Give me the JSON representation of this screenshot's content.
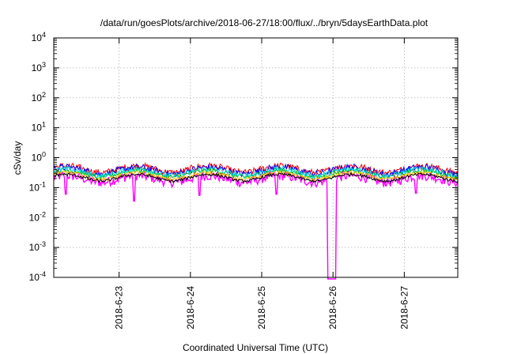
{
  "chart_data": {
    "type": "line",
    "title": "/data/run/goesPlots/archive/2018-06-27/18:00/flux/../bryn/5daysEarthData.plot",
    "xlabel": "Coordinated Universal Time (UTC)",
    "ylabel": "cSv/day",
    "yscale": "log",
    "ylim": [
      0.0001,
      10000
    ],
    "y_ticks": [
      {
        "value": 0.0001,
        "base": "10",
        "exp": "-4"
      },
      {
        "value": 0.001,
        "base": "10",
        "exp": "-3"
      },
      {
        "value": 0.01,
        "base": "10",
        "exp": "-2"
      },
      {
        "value": 0.1,
        "base": "10",
        "exp": "-1"
      },
      {
        "value": 1,
        "base": "10",
        "exp": "0"
      },
      {
        "value": 10,
        "base": "10",
        "exp": "1"
      },
      {
        "value": 100,
        "base": "10",
        "exp": "2"
      },
      {
        "value": 1000,
        "base": "10",
        "exp": "3"
      },
      {
        "value": 10000,
        "base": "10",
        "exp": "4"
      }
    ],
    "xlim": [
      "2018-06-22T02:00",
      "2018-06-27T18:00"
    ],
    "x_ticks": [
      {
        "value": "2018-06-23",
        "label": "2018-6-23"
      },
      {
        "value": "2018-06-24",
        "label": "2018-6-24"
      },
      {
        "value": "2018-06-25",
        "label": "2018-6-25"
      },
      {
        "value": "2018-06-26",
        "label": "2018-6-26"
      },
      {
        "value": "2018-06-27",
        "label": "2018-6-27"
      }
    ],
    "grid": true,
    "series": [
      {
        "color": "#ff00ff",
        "level": 0.2,
        "spread": 1.45,
        "dropout": [
          "2018-06-25T22:00",
          "2018-06-26T01:00"
        ],
        "dips": [
          {
            "x": "2018-06-22T06:00",
            "value": 0.06
          },
          {
            "x": "2018-06-23T05:00",
            "value": 0.035
          },
          {
            "x": "2018-06-24T03:00",
            "value": 0.055
          },
          {
            "x": "2018-06-25T05:00",
            "value": 0.06
          },
          {
            "x": "2018-06-27T04:00",
            "value": 0.065
          }
        ]
      },
      {
        "color": "#ff0000",
        "level": 0.42,
        "spread": 1.3
      },
      {
        "color": "#0000ff",
        "level": 0.38,
        "spread": 1.3
      },
      {
        "color": "#00b000",
        "level": 0.3,
        "spread": 1.2
      },
      {
        "color": "#00e0e0",
        "level": 0.33,
        "spread": 1.22
      },
      {
        "color": "#ffc000",
        "level": 0.25,
        "spread": 1.15
      },
      {
        "color": "#000000",
        "level": 0.22,
        "spread": 1.12
      }
    ]
  }
}
